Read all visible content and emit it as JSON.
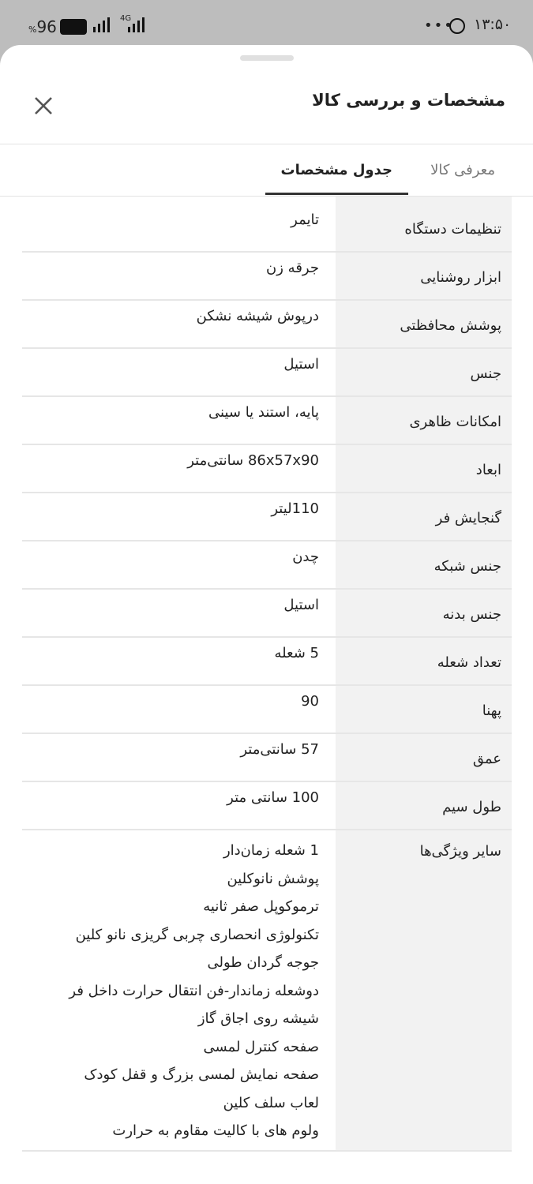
{
  "status_bar": {
    "time": "۱۳:۵۰",
    "battery": "96",
    "battery_unit": "%",
    "network": "4G"
  },
  "sheet": {
    "title": "مشخصات و بررسی کالا",
    "tabs": [
      "معرفی کالا",
      "جدول مشخصات"
    ],
    "active_tab": 1,
    "rows": [
      {
        "label": "تنظیمات دستگاه",
        "value": [
          "تایمر"
        ]
      },
      {
        "label": "ابزار روشنایی",
        "value": [
          "جرقه زن"
        ]
      },
      {
        "label": "پوشش محافظتی",
        "value": [
          "درپوش شیشه نشکن"
        ]
      },
      {
        "label": "جنس",
        "value": [
          "استیل"
        ]
      },
      {
        "label": "امکانات ظاهری",
        "value": [
          "پایه، استند یا سینی"
        ]
      },
      {
        "label": "ابعاد",
        "value": [
          "86x57x90 سانتی‌متر"
        ]
      },
      {
        "label": "گنجایش فر",
        "value": [
          "110لیتر"
        ]
      },
      {
        "label": "جنس شبکه",
        "value": [
          "چدن"
        ]
      },
      {
        "label": "جنس بدنه",
        "value": [
          "استیل"
        ]
      },
      {
        "label": "تعداد شعله",
        "value": [
          "5 شعله"
        ]
      },
      {
        "label": "پهنا",
        "value": [
          "90"
        ]
      },
      {
        "label": "عمق",
        "value": [
          "57 سانتی‌متر"
        ]
      },
      {
        "label": "طول سیم",
        "value": [
          "100 سانتی متر"
        ]
      },
      {
        "label": "سایر ویژگی‌ها",
        "value": [
          "1 شعله زمان‌دار",
          "پوشش نانوکلین",
          "ترموکوپل صفر ثانیه",
          "تکنولوژی انحصاری چربی گریزی نانو کلین",
          "جوجه گردان طولی",
          "دوشعله زماندار-فن انتقال حرارت داخل فر",
          "شیشه روی اجاق گاز",
          "صفحه کنترل لمسی",
          "صفحه نمایش لمسی بزرگ و قفل کودک",
          "لعاب سلف کلین",
          "ولوم های با کالیت مقاوم به حرارت"
        ]
      }
    ]
  }
}
